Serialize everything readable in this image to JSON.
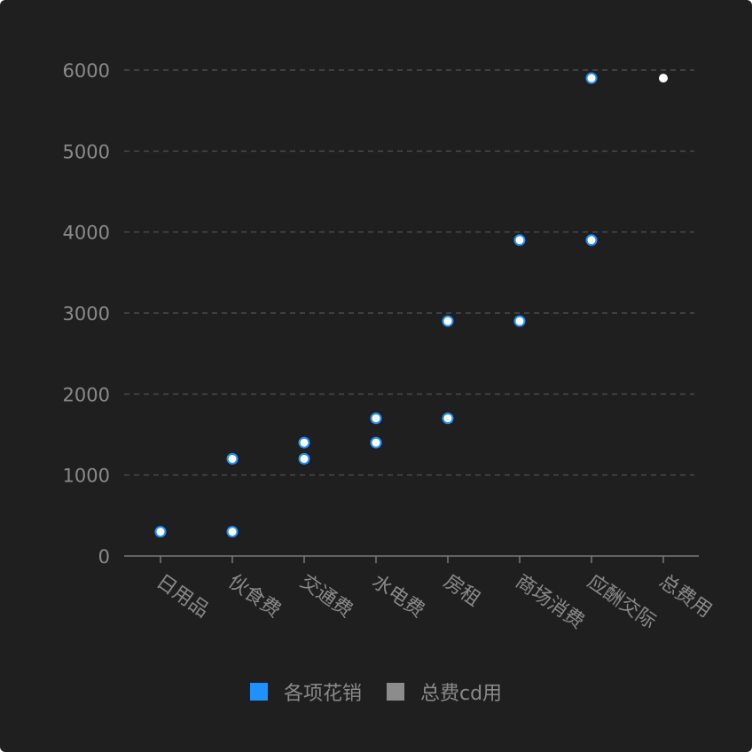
{
  "chart_data": {
    "type": "scatter",
    "categories": [
      "日用品",
      "伙食费",
      "交通费",
      "水电费",
      "房租",
      "商场消费",
      "应酬交际",
      "总费用"
    ],
    "ylim": [
      0,
      6000
    ],
    "yticks": [
      0,
      1000,
      2000,
      3000,
      4000,
      5000,
      6000
    ],
    "grid": true,
    "legend_position": "bottom",
    "series": [
      {
        "name": "各项花销",
        "color": "#1e90ff",
        "points": [
          {
            "x": "日用品",
            "y": 300
          },
          {
            "x": "伙食费",
            "y": 300
          },
          {
            "x": "伙食费",
            "y": 1200
          },
          {
            "x": "交通费",
            "y": 1200
          },
          {
            "x": "交通费",
            "y": 1400
          },
          {
            "x": "水电费",
            "y": 1400
          },
          {
            "x": "水电费",
            "y": 1700
          },
          {
            "x": "房租",
            "y": 1700
          },
          {
            "x": "房租",
            "y": 2900
          },
          {
            "x": "商场消费",
            "y": 2900
          },
          {
            "x": "商场消费",
            "y": 3900
          },
          {
            "x": "应酬交际",
            "y": 3900
          },
          {
            "x": "应酬交际",
            "y": 5900
          }
        ]
      },
      {
        "name": "总费cd用",
        "color": "#8c8c8c",
        "points": [
          {
            "x": "总费用",
            "y": 5900
          }
        ]
      }
    ]
  },
  "colors": {
    "background": "#1f1f1f",
    "axis": "#7a7a7a",
    "grid": "#4a4a4a",
    "text": "#8a8a8a",
    "point_fill": "#ffffff"
  }
}
